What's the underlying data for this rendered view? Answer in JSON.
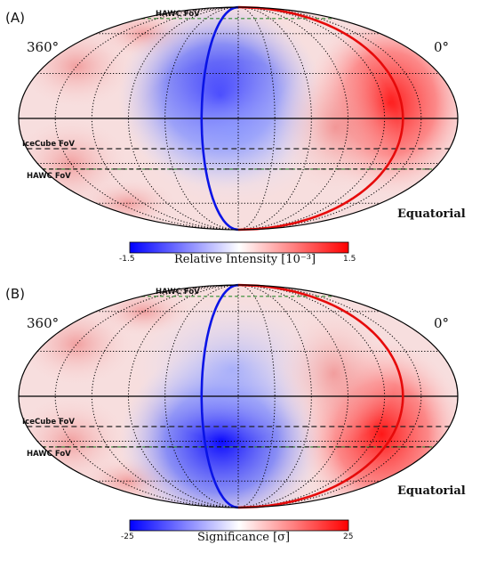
{
  "panels": [
    {
      "id": "A",
      "panel_label": "(A)",
      "ra_left": "360°",
      "ra_right": "0°",
      "frame": "Equatorial",
      "fov": {
        "hawc_top": "HAWC FoV",
        "icecube": "IceCube FoV",
        "hawc_bottom": "HAWC FoV"
      },
      "colorbar": {
        "min_label": "-1.5",
        "max_label": "1.5",
        "title": "Relative Intensity [10⁻³]",
        "min": -1.5,
        "max": 1.5
      },
      "blue_lobe": {
        "intensity": 0.95,
        "center_lat": 15
      },
      "red_lobe": {
        "intensity": 0.9,
        "center_lat": 10
      }
    },
    {
      "id": "B",
      "panel_label": "(B)",
      "ra_left": "360°",
      "ra_right": "0°",
      "frame": "Equatorial",
      "fov": {
        "hawc_top": "HAWC FoV",
        "icecube": "IceCube FoV",
        "hawc_bottom": "HAWC FoV"
      },
      "colorbar": {
        "min_label": "-25",
        "max_label": "25",
        "title": "Significance [σ]",
        "min": -25,
        "max": 25
      },
      "blue_lobe": {
        "intensity": 0.95,
        "center_lat": -30
      },
      "red_lobe": {
        "intensity": 0.9,
        "center_lat": -25
      }
    }
  ],
  "colors": {
    "colormap_low": "#0000ff",
    "colormap_mid": "#ffffff",
    "colormap_high": "#ff0000",
    "blue_curve": "#0a14e6",
    "red_curve": "#e60a0a",
    "fov_hawc_line": "#2e8b2e",
    "fov_icecube_line": "#222222",
    "grid": "#000000"
  }
}
